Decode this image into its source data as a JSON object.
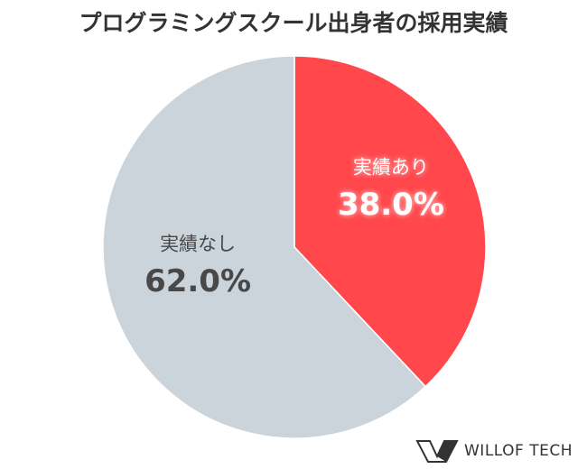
{
  "chart_data": {
    "type": "pie",
    "title": "プログラミングスクール出身者の採用実績",
    "categories": [
      "実績あり",
      "実績なし"
    ],
    "values": [
      38.0,
      62.0
    ],
    "value_labels": [
      "38.0%",
      "62.0%"
    ],
    "colors": [
      "#ff474c",
      "#cbd3db"
    ],
    "label_colors": [
      "#ffffff",
      "#484848"
    ],
    "watermark": "WILLOF TECH"
  }
}
